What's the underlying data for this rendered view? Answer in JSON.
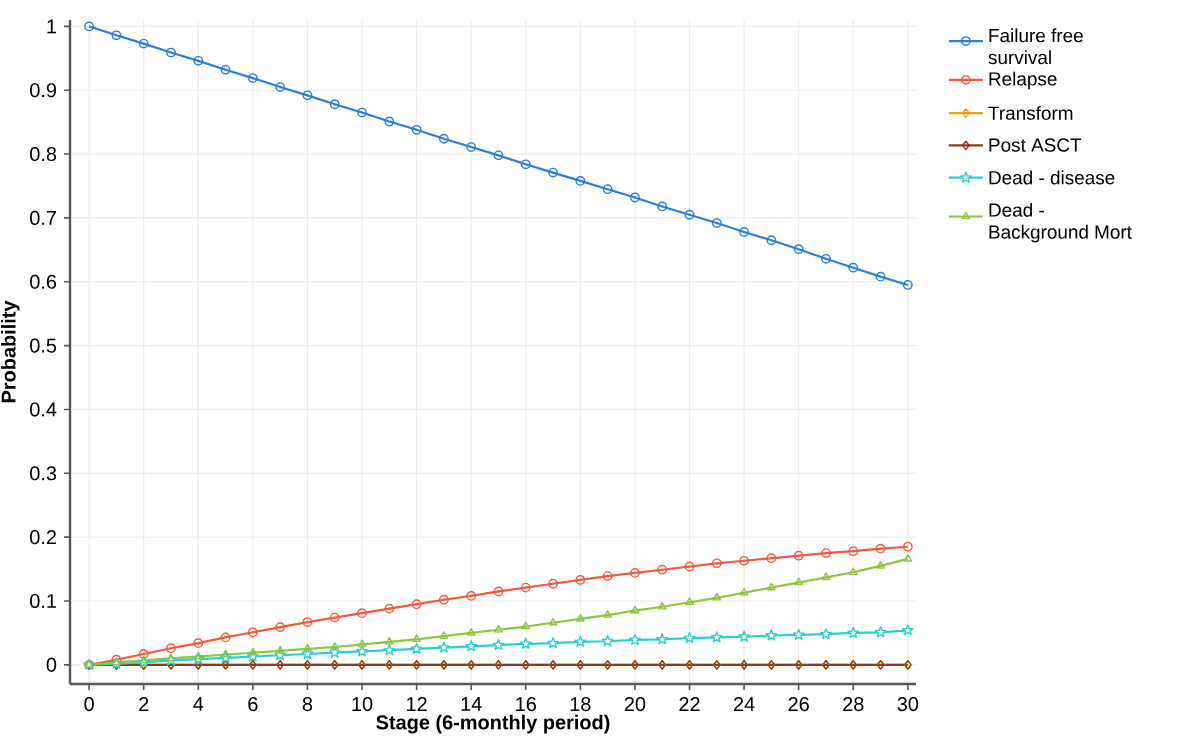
{
  "chart_data": {
    "type": "line",
    "xlabel": "Stage (6-monthly period)",
    "ylabel": "Probability",
    "x": [
      0,
      1,
      2,
      3,
      4,
      5,
      6,
      7,
      8,
      9,
      10,
      11,
      12,
      13,
      14,
      15,
      16,
      17,
      18,
      19,
      20,
      21,
      22,
      23,
      24,
      25,
      26,
      27,
      28,
      29,
      30
    ],
    "xlim": [
      -0.7,
      30.3
    ],
    "ylim": [
      -0.03,
      1.01
    ],
    "xticks": [
      0,
      2,
      4,
      6,
      8,
      10,
      12,
      14,
      16,
      18,
      20,
      22,
      24,
      26,
      28,
      30
    ],
    "yticks": [
      0,
      0.1,
      0.2,
      0.3,
      0.4,
      0.5,
      0.6,
      0.7,
      0.8,
      0.9,
      1
    ],
    "grid": true,
    "legend": "top right",
    "line_style": "solid",
    "series": [
      {
        "name": "Failure free survival",
        "color": "#2a7de1",
        "marker": "circle",
        "values": [
          1,
          0.986,
          0.973,
          0.959,
          0.946,
          0.932,
          0.919,
          0.905,
          0.892,
          0.878,
          0.865,
          0.851,
          0.838,
          0.824,
          0.811,
          0.798,
          0.784,
          0.771,
          0.758,
          0.745,
          0.732,
          0.718,
          0.705,
          0.692,
          0.678,
          0.665,
          0.651,
          0.636,
          0.622,
          0.608,
          0.595
        ]
      },
      {
        "name": "Relapse",
        "color": "#f4593b",
        "marker": "circle",
        "values": [
          0,
          0.008,
          0.017,
          0.026,
          0.034,
          0.043,
          0.051,
          0.059,
          0.067,
          0.074,
          0.081,
          0.088,
          0.095,
          0.102,
          0.108,
          0.115,
          0.121,
          0.127,
          0.133,
          0.139,
          0.144,
          0.149,
          0.154,
          0.159,
          0.163,
          0.167,
          0.171,
          0.175,
          0.178,
          0.182,
          0.185
        ]
      },
      {
        "name": "Transform",
        "color": "#e8a317",
        "marker": "diamond",
        "values": [
          0,
          0,
          0,
          0,
          0,
          0,
          0,
          0,
          0,
          0,
          0,
          0,
          0,
          0,
          0,
          0,
          0,
          0,
          0,
          0,
          0,
          0,
          0,
          0,
          0,
          0,
          0,
          0,
          0,
          0,
          0
        ]
      },
      {
        "name": "Post ASCT",
        "color": "#8b3a1a",
        "marker": "diamond",
        "values": [
          0,
          0,
          0,
          0,
          0,
          0,
          0,
          0,
          0,
          0,
          0,
          0,
          0,
          0,
          0,
          0,
          0,
          0,
          0,
          0,
          0,
          0,
          0,
          0,
          0,
          0,
          0,
          0,
          0,
          0,
          0
        ]
      },
      {
        "name": "Dead - disease",
        "color": "#2ccfd0",
        "marker": "star",
        "values": [
          0,
          0.002,
          0.004,
          0.007,
          0.009,
          0.011,
          0.013,
          0.015,
          0.017,
          0.019,
          0.021,
          0.023,
          0.025,
          0.027,
          0.029,
          0.031,
          0.033,
          0.034,
          0.036,
          0.037,
          0.039,
          0.04,
          0.042,
          0.043,
          0.044,
          0.046,
          0.047,
          0.048,
          0.05,
          0.051,
          0.054
        ]
      },
      {
        "name": "Dead - Background Mort",
        "color": "#8dc63f",
        "marker": "triangle",
        "values": [
          0,
          0.004,
          0.007,
          0.01,
          0.013,
          0.016,
          0.019,
          0.022,
          0.025,
          0.028,
          0.032,
          0.036,
          0.04,
          0.045,
          0.05,
          0.055,
          0.06,
          0.066,
          0.072,
          0.078,
          0.085,
          0.091,
          0.098,
          0.105,
          0.113,
          0.121,
          0.129,
          0.137,
          0.145,
          0.155,
          0.166
        ]
      }
    ]
  }
}
